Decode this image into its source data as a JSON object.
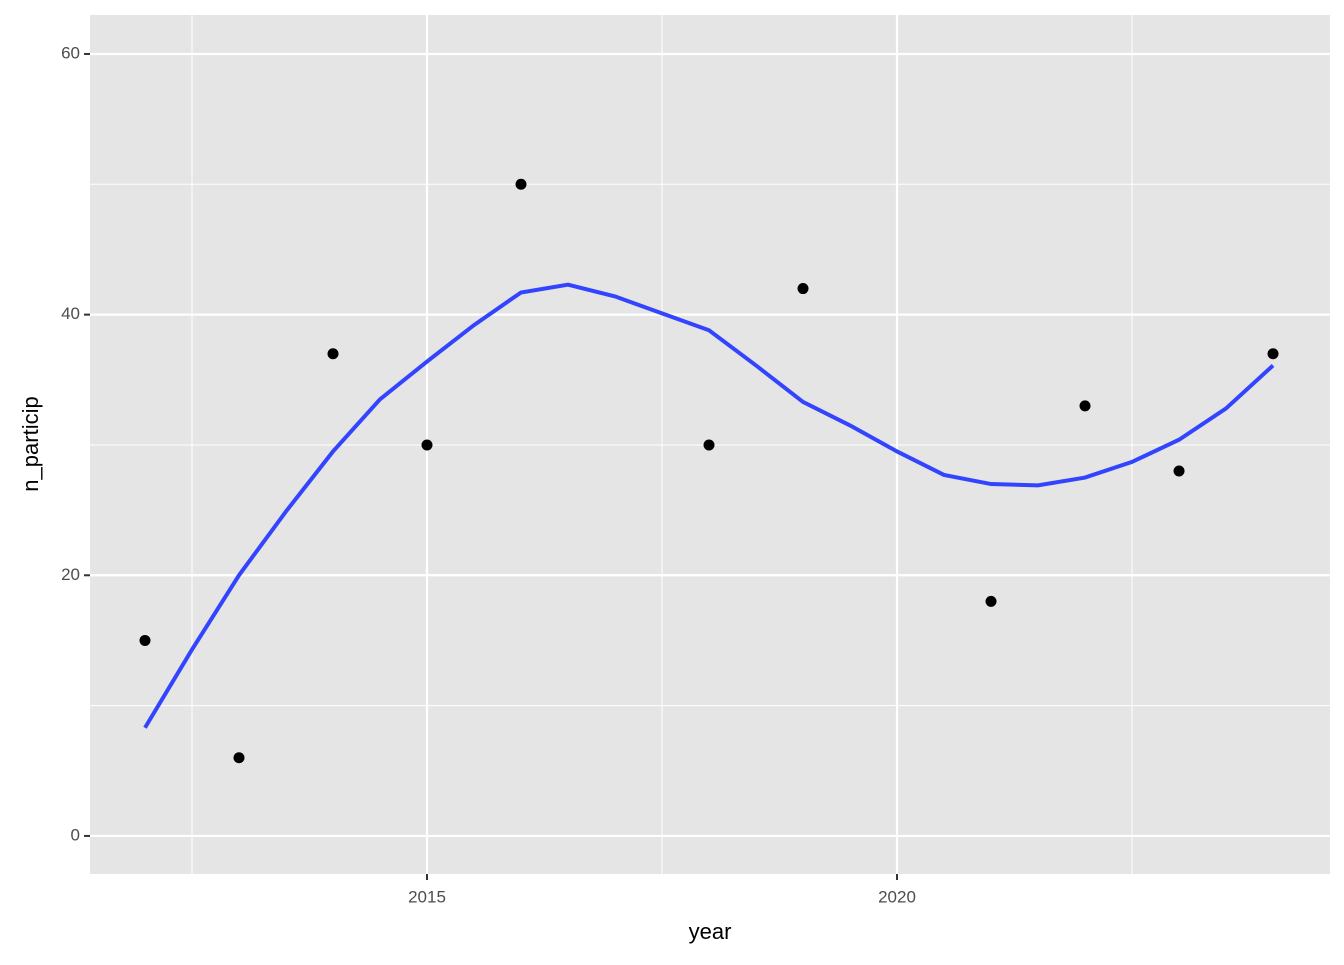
{
  "chart_data": {
    "type": "scatter",
    "x_label": "year",
    "y_label": "n_particip",
    "xlim": [
      2011.415,
      2024.606
    ],
    "ylim": [
      -2.92,
      62.99
    ],
    "xticks": [
      2015,
      2020
    ],
    "yticks": [
      0,
      20,
      40,
      60
    ],
    "x_minor_ticks": [
      2012.5,
      2017.5,
      2022.5
    ],
    "y_minor_ticks": [
      10,
      30,
      50
    ],
    "grid": true,
    "series": [
      {
        "name": "points",
        "color": "#000000",
        "x": [
          2012,
          2013,
          2014,
          2015,
          2016,
          2018,
          2019,
          2021,
          2022,
          2023,
          2024
        ],
        "values": [
          15,
          6,
          37,
          30,
          50,
          30,
          42,
          18,
          33,
          28,
          37
        ]
      },
      {
        "name": "smooth",
        "color": "#3344ff",
        "x": [
          2012,
          2012.5,
          2013,
          2013.5,
          2014,
          2014.5,
          2015,
          2015.5,
          2016,
          2016.5,
          2017,
          2017.5,
          2018,
          2018.5,
          2019,
          2019.5,
          2020,
          2020.5,
          2021,
          2021.5,
          2022,
          2022.5,
          2023,
          2023.5,
          2024
        ],
        "values": [
          8.3,
          14.3,
          20.0,
          24.9,
          29.5,
          33.5,
          36.4,
          39.2,
          41.7,
          42.3,
          41.4,
          40.1,
          38.8,
          36.1,
          33.3,
          31.5,
          29.5,
          27.7,
          27.0,
          26.9,
          27.5,
          28.7,
          30.4,
          32.8,
          36.1
        ]
      }
    ]
  }
}
